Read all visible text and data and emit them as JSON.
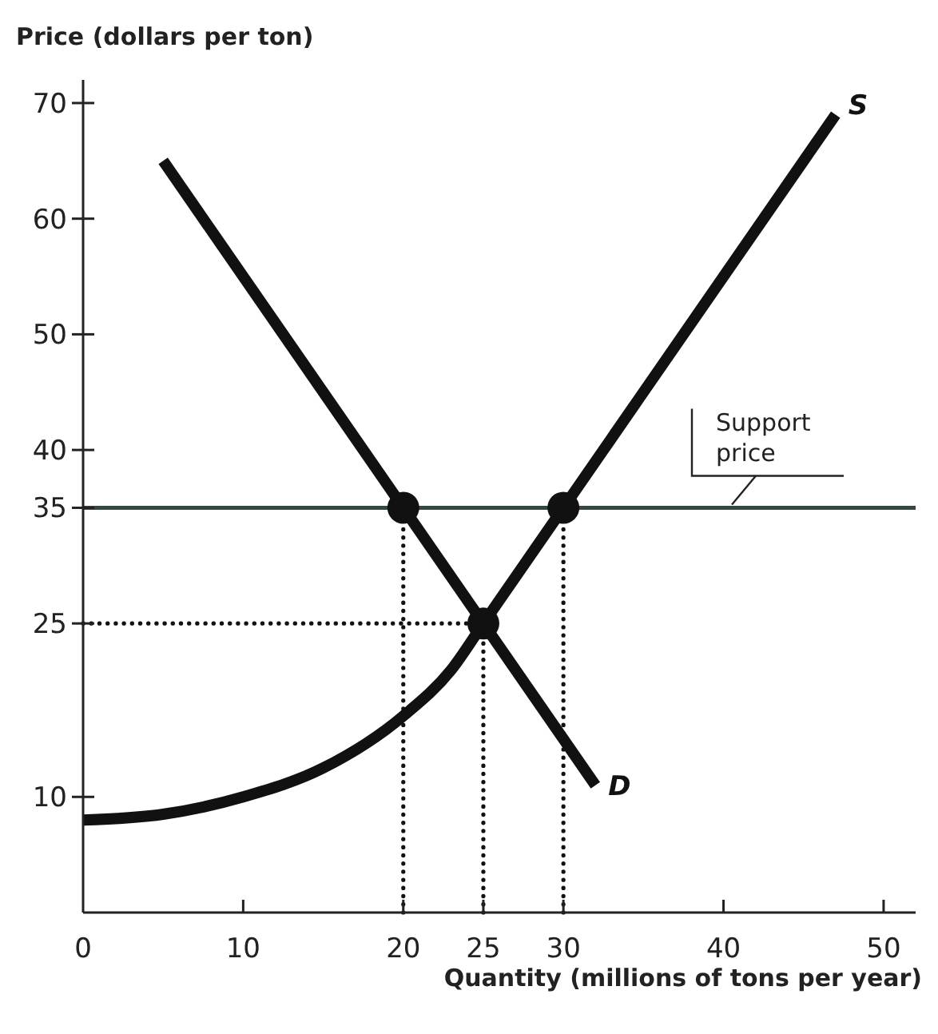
{
  "chart_data": {
    "type": "line",
    "xlabel": "Quantity (millions of tons per year)",
    "ylabel": "Price (dollars per ton)",
    "xlim": [
      0,
      52
    ],
    "ylim": [
      0,
      72
    ],
    "xticks": [
      0,
      10,
      20,
      25,
      30,
      40,
      50
    ],
    "yticks": [
      10,
      25,
      35,
      40,
      50,
      60,
      70
    ],
    "grid": false,
    "marker": "none",
    "series": [
      {
        "name": "S",
        "color": "#111111",
        "x": [
          0,
          5,
          10,
          15,
          20,
          23,
          25,
          30,
          47
        ],
        "values": [
          8,
          8.5,
          10,
          12.5,
          17,
          21,
          25,
          35,
          69
        ],
        "line_style": "solid"
      },
      {
        "name": "D",
        "color": "#111111",
        "x": [
          5,
          32
        ],
        "values": [
          65,
          11
        ],
        "line_style": "solid"
      },
      {
        "color": "#111111",
        "x": [
          0,
          25
        ],
        "values": [
          25,
          25
        ],
        "line_style": "dotted"
      },
      {
        "color": "#111111",
        "x": [
          20,
          20
        ],
        "values": [
          0,
          35
        ],
        "line_style": "dotted"
      },
      {
        "color": "#111111",
        "x": [
          25,
          25
        ],
        "values": [
          0,
          25
        ],
        "line_style": "dotted"
      },
      {
        "color": "#111111",
        "x": [
          30,
          30
        ],
        "values": [
          0,
          35
        ],
        "line_style": "dotted"
      },
      {
        "type": "scatter",
        "color": "#111111",
        "marker": "circle",
        "x": [
          20,
          30,
          25
        ],
        "values": [
          35,
          35,
          25
        ]
      }
    ],
    "ref_lines": [
      {
        "axis": "y",
        "value": 35,
        "label": "Support price",
        "color": "#2f4a3f",
        "line_style": "solid"
      }
    ]
  }
}
